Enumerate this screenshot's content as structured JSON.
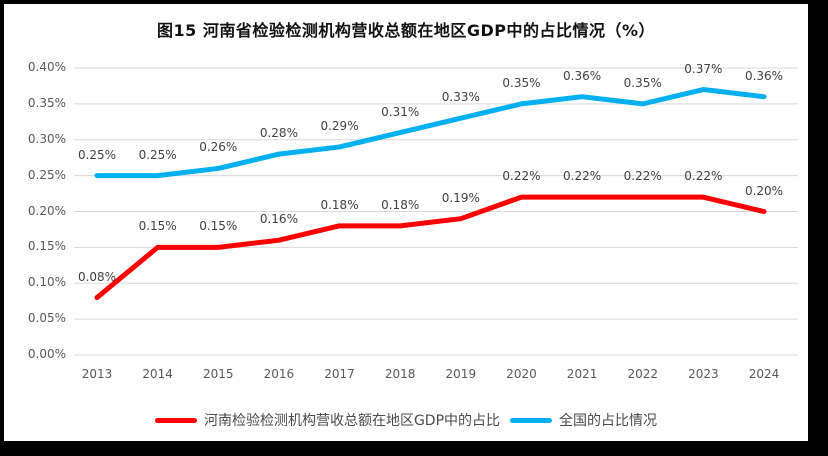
{
  "window": {
    "background": "#ffffff",
    "frame_border_color": "#000000"
  },
  "chart_data": {
    "type": "line",
    "title": "图15  河南省检验检测机构营收总额在地区GDP中的占比情况（%）",
    "x": [
      "2013",
      "2014",
      "2015",
      "2016",
      "2017",
      "2018",
      "2019",
      "2020",
      "2021",
      "2022",
      "2023",
      "2024"
    ],
    "y_ticks": [
      "0.40%",
      "0.35%",
      "0.30%",
      "0.25%",
      "0.20%",
      "0.15%",
      "0.10%",
      "0.05%",
      "0.00%"
    ],
    "ylim": [
      0.0,
      0.4
    ],
    "y_unit": "%",
    "grid": true,
    "legend_position": "bottom",
    "colors": {
      "gridline": "#D9D9D9",
      "axis_text": "#595959",
      "data_label_text": "#404040"
    },
    "series": [
      {
        "name": "河南检验检测机构营收总额在地区GDP中的占比",
        "color": "#FF0000",
        "values": [
          0.08,
          0.15,
          0.15,
          0.16,
          0.18,
          0.18,
          0.19,
          0.22,
          0.22,
          0.22,
          0.22,
          0.2
        ],
        "labels": [
          "0.08%",
          "0.15%",
          "0.15%",
          "0.16%",
          "0.18%",
          "0.18%",
          "0.19%",
          "0.22%",
          "0.22%",
          "0.22%",
          "0.22%",
          "0.20%"
        ]
      },
      {
        "name": "全国的占比情况",
        "color": "#00B0F0",
        "values": [
          0.25,
          0.25,
          0.26,
          0.28,
          0.29,
          0.31,
          0.33,
          0.35,
          0.36,
          0.35,
          0.37,
          0.36
        ],
        "labels": [
          "0.25%",
          "0.25%",
          "0.26%",
          "0.28%",
          "0.29%",
          "0.31%",
          "0.33%",
          "0.35%",
          "0.36%",
          "0.35%",
          "0.37%",
          "0.36%"
        ]
      }
    ]
  }
}
